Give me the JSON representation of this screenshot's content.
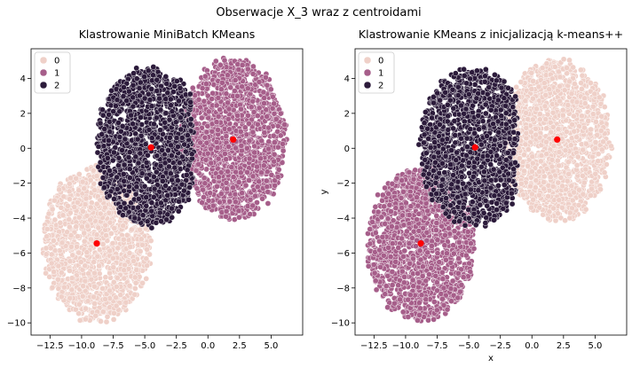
{
  "suptitle": "Obserwacje X_3 wraz z centroidami",
  "colors": {
    "cluster_0": "#efd0c8",
    "cluster_1": "#a65e8a",
    "cluster_2": "#2c1b3b",
    "centroid": "#ff0000",
    "marker_edge": "#ffffff"
  },
  "chart_data": [
    {
      "type": "scatter",
      "title": "Klastrowanie MiniBatch KMeans",
      "xlabel": "",
      "ylabel": "",
      "xlim": [
        -14,
        7.5
      ],
      "ylim": [
        -10.7,
        5.7
      ],
      "xticks": [
        -12.5,
        -10.0,
        -7.5,
        -5.0,
        -2.5,
        0.0,
        2.5,
        5.0
      ],
      "xtick_labels": [
        "−12.5",
        "−10.0",
        "−7.5",
        "−5.0",
        "−2.5",
        "0.0",
        "2.5",
        "5.0"
      ],
      "yticks": [
        -10,
        -8,
        -6,
        -4,
        -2,
        0,
        2,
        4
      ],
      "ytick_labels": [
        "−10",
        "−8",
        "−6",
        "−4",
        "−2",
        "0",
        "2",
        "4"
      ],
      "grid": false,
      "legend": {
        "position": "top-left",
        "entries": [
          "0",
          "1",
          "2"
        ]
      },
      "series": [
        {
          "name": "0",
          "cluster": 0,
          "center": [
            -8.8,
            -5.5
          ],
          "shape": "ellipse",
          "rx": 4.3,
          "ry": 4.4
        },
        {
          "name": "1",
          "cluster": 1,
          "center": [
            2.0,
            0.5
          ],
          "shape": "ellipse",
          "rx": 4.2,
          "ry": 4.6
        },
        {
          "name": "2",
          "cluster": 2,
          "center": [
            -4.6,
            0.1
          ],
          "shape": "ellipse",
          "rx": 4.3,
          "ry": 4.5,
          "cut_right_at_x": -1.2
        }
      ],
      "centroids": [
        [
          -8.8,
          -5.45
        ],
        [
          2.0,
          0.5
        ],
        [
          -4.5,
          0.05
        ]
      ]
    },
    {
      "type": "scatter",
      "title": "Klastrowanie KMeans z inicjalizacją k-means++",
      "xlabel": "x",
      "ylabel": "y",
      "xlim": [
        -14,
        7.5
      ],
      "ylim": [
        -10.7,
        5.7
      ],
      "xticks": [
        -12.5,
        -10.0,
        -7.5,
        -5.0,
        -2.5,
        0.0,
        2.5,
        5.0
      ],
      "xtick_labels": [
        "−12.5",
        "−10.0",
        "−7.5",
        "−5.0",
        "−2.5",
        "0.0",
        "2.5",
        "5.0"
      ],
      "yticks": [
        -10,
        -8,
        -6,
        -4,
        -2,
        0,
        2,
        4
      ],
      "ytick_labels": [
        "−10",
        "−8",
        "−6",
        "−4",
        "−2",
        "0",
        "2",
        "4"
      ],
      "grid": false,
      "legend": {
        "position": "top-left",
        "entries": [
          "0",
          "1",
          "2"
        ]
      },
      "series": [
        {
          "name": "1",
          "cluster": 1,
          "center": [
            -8.8,
            -5.5
          ],
          "shape": "ellipse",
          "rx": 4.3,
          "ry": 4.4
        },
        {
          "name": "0",
          "cluster": 0,
          "center": [
            2.0,
            0.5
          ],
          "shape": "ellipse",
          "rx": 4.2,
          "ry": 4.6
        },
        {
          "name": "2",
          "cluster": 2,
          "center": [
            -4.6,
            0.1
          ],
          "shape": "ellipse",
          "rx": 4.3,
          "ry": 4.5,
          "cut_right_at_x": -1.2
        }
      ],
      "centroids": [
        [
          -8.8,
          -5.45
        ],
        [
          2.0,
          0.5
        ],
        [
          -4.5,
          0.05
        ]
      ]
    }
  ]
}
